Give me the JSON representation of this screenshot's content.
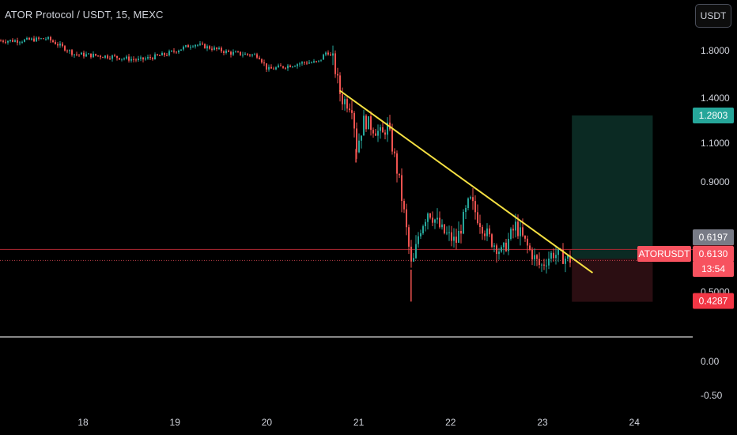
{
  "header": {
    "title": "ATOR Protocol / USDT, 15, MEXC",
    "currency_button": "USDT"
  },
  "price_scale": {
    "ticks": [
      "1.8000",
      "1.4000",
      "1.1000",
      "0.9000",
      "0.5000",
      "0.00",
      "-0.50"
    ]
  },
  "time_scale": {
    "ticks": [
      "18",
      "19",
      "20",
      "21",
      "22",
      "23",
      "24"
    ]
  },
  "labels": {
    "target": {
      "text": "1.2803",
      "color": "#26a69a"
    },
    "stop_top": {
      "text": "0.6562",
      "color": "#f23645"
    },
    "prev_price": {
      "text": "0.6197",
      "color": "#787b86"
    },
    "symbol": {
      "text": "ATORUSDT",
      "color": "#f7525f"
    },
    "last_price": {
      "text": "0.6130",
      "color": "#f7525f"
    },
    "countdown": {
      "text": "13:54",
      "color": "#f7525f"
    },
    "stop_bottom": {
      "text": "0.4287",
      "color": "#f23645"
    }
  },
  "colors": {
    "up": "#26a69a",
    "down": "#ef5350",
    "trendline": "#f5e042",
    "profit_zone": "#0b2a23",
    "loss_zone": "#2b0e12",
    "horizontal_red": "#b22833",
    "white_line": "#d8d8d8"
  },
  "chart_data": {
    "type": "candlestick",
    "symbol": "ATORUSDT",
    "interval": "15",
    "exchange": "MEXC",
    "x_ticks": [
      "18",
      "19",
      "20",
      "21",
      "22",
      "23",
      "24"
    ],
    "y_ticks": [
      1.8,
      1.4,
      1.1,
      0.9,
      0.5,
      0.0,
      -0.5
    ],
    "price_path": [
      {
        "day": 17.3,
        "price": 1.89
      },
      {
        "day": 17.6,
        "price": 1.91
      },
      {
        "day": 17.9,
        "price": 1.77
      },
      {
        "day": 18.3,
        "price": 1.75
      },
      {
        "day": 18.6,
        "price": 1.72
      },
      {
        "day": 18.9,
        "price": 1.77
      },
      {
        "day": 19.2,
        "price": 1.86
      },
      {
        "day": 19.6,
        "price": 1.78
      },
      {
        "day": 19.9,
        "price": 1.76
      },
      {
        "day": 20.0,
        "price": 1.64
      },
      {
        "day": 20.4,
        "price": 1.7
      },
      {
        "day": 20.55,
        "price": 1.7
      },
      {
        "day": 20.65,
        "price": 1.8
      },
      {
        "day": 20.72,
        "price": 1.7
      },
      {
        "day": 20.8,
        "price": 1.4
      },
      {
        "day": 20.92,
        "price": 1.35
      },
      {
        "day": 20.97,
        "price": 1.07
      },
      {
        "day": 21.05,
        "price": 1.25
      },
      {
        "day": 21.25,
        "price": 1.15
      },
      {
        "day": 21.3,
        "price": 1.22
      },
      {
        "day": 21.4,
        "price": 0.98
      },
      {
        "day": 21.5,
        "price": 0.75
      },
      {
        "day": 21.57,
        "price": 0.58
      },
      {
        "day": 21.65,
        "price": 0.72
      },
      {
        "day": 21.75,
        "price": 0.8
      },
      {
        "day": 21.9,
        "price": 0.72
      },
      {
        "day": 22.05,
        "price": 0.68
      },
      {
        "day": 22.2,
        "price": 0.83
      },
      {
        "day": 22.4,
        "price": 0.7
      },
      {
        "day": 22.55,
        "price": 0.64
      },
      {
        "day": 22.7,
        "price": 0.74
      },
      {
        "day": 22.85,
        "price": 0.65
      },
      {
        "day": 22.97,
        "price": 0.59
      },
      {
        "day": 23.1,
        "price": 0.64
      },
      {
        "day": 23.25,
        "price": 0.62
      },
      {
        "day": 23.32,
        "price": 0.613
      }
    ],
    "notable_wicks": [
      {
        "day": 21.57,
        "low": 0.43
      },
      {
        "day": 20.97,
        "low": 1.0
      }
    ],
    "trendline": {
      "start": {
        "day": 20.8,
        "price": 1.46
      },
      "end": {
        "day": 23.54,
        "price": 0.57
      }
    },
    "position": {
      "entry": 0.6197,
      "target": 1.2803,
      "stop": 0.4287,
      "stop_line": 0.6562,
      "last_price": 0.613,
      "start_day": 23.32,
      "end_day": 24.2
    },
    "zero_line": 0.0
  }
}
